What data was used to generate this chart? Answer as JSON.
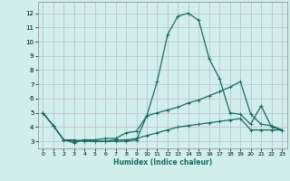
{
  "xlabel": "Humidex (Indice chaleur)",
  "background_color": "#d0eeea",
  "grid_color": "#c0b8c8",
  "line_color": "#1a6b60",
  "xlim": [
    -0.5,
    23.5
  ],
  "ylim": [
    2.5,
    12.8
  ],
  "xticks": [
    0,
    1,
    2,
    3,
    4,
    5,
    6,
    7,
    8,
    9,
    10,
    11,
    12,
    13,
    14,
    15,
    16,
    17,
    18,
    19,
    20,
    21,
    22,
    23
  ],
  "yticks": [
    3,
    4,
    5,
    6,
    7,
    8,
    9,
    10,
    11,
    12
  ],
  "line1_x": [
    0,
    1,
    2,
    3,
    4,
    5,
    6,
    7,
    8,
    9,
    10,
    11,
    12,
    13,
    14,
    15,
    16,
    17,
    18,
    19,
    20,
    21,
    22,
    23
  ],
  "line1_y": [
    5.0,
    4.1,
    3.1,
    2.9,
    3.1,
    3.0,
    3.0,
    3.0,
    3.0,
    3.1,
    4.8,
    7.2,
    10.5,
    11.8,
    12.0,
    11.5,
    8.8,
    7.4,
    5.0,
    4.9,
    4.2,
    5.5,
    4.0,
    3.8
  ],
  "line2_x": [
    0,
    1,
    2,
    3,
    4,
    5,
    6,
    7,
    8,
    9,
    10,
    11,
    12,
    13,
    14,
    15,
    16,
    17,
    18,
    19,
    20,
    21,
    22,
    23
  ],
  "line2_y": [
    5.0,
    4.1,
    3.1,
    3.0,
    3.1,
    3.1,
    3.2,
    3.2,
    3.6,
    3.7,
    4.8,
    5.0,
    5.2,
    5.4,
    5.7,
    5.9,
    6.2,
    6.5,
    6.8,
    7.2,
    4.9,
    4.2,
    4.1,
    3.8
  ],
  "line3_x": [
    0,
    1,
    2,
    3,
    4,
    5,
    6,
    7,
    8,
    9,
    10,
    11,
    12,
    13,
    14,
    15,
    16,
    17,
    18,
    19,
    20,
    21,
    22,
    23
  ],
  "line3_y": [
    5.0,
    4.1,
    3.1,
    3.1,
    3.0,
    3.0,
    3.0,
    3.1,
    3.1,
    3.2,
    3.4,
    3.6,
    3.8,
    4.0,
    4.1,
    4.2,
    4.3,
    4.4,
    4.5,
    4.6,
    3.8,
    3.8,
    3.8,
    3.8
  ]
}
